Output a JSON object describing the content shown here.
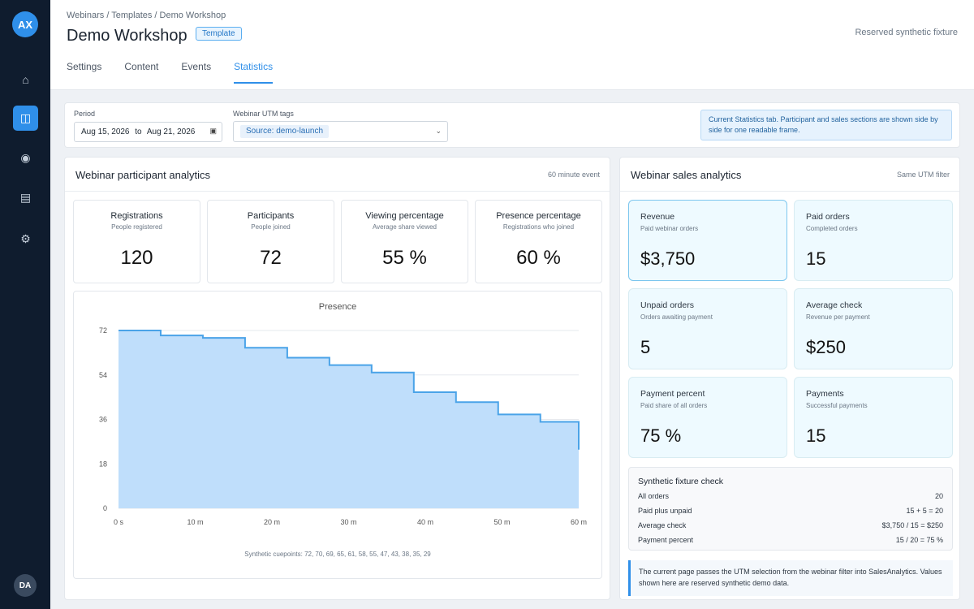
{
  "sidebar": {
    "avatar": "AX",
    "user_initials": "DA",
    "items": [
      {
        "icon": "home-icon",
        "glyph": "⌂"
      },
      {
        "icon": "book-icon",
        "glyph": "◫"
      },
      {
        "icon": "broadcast-icon",
        "glyph": "◉"
      },
      {
        "icon": "list-icon",
        "glyph": "▤"
      },
      {
        "icon": "gear-icon",
        "glyph": "⚙"
      }
    ]
  },
  "header": {
    "breadcrumb": "Webinars / Templates / Demo Workshop",
    "title": "Demo Workshop",
    "badge": "Template",
    "fixture_note": "Reserved synthetic fixture",
    "tabs": [
      "Settings",
      "Content",
      "Events",
      "Statistics"
    ],
    "active_tab": "Statistics"
  },
  "filters": {
    "period_label": "Period",
    "period_from": "Aug 15, 2026",
    "period_to_word": "to",
    "period_to": "Aug 21, 2026",
    "utm_label": "Webinar UTM tags",
    "utm_chip": "Source: demo-launch",
    "info_note": "Current Statistics tab. Participant and sales sections are shown side by side for one readable frame."
  },
  "participants": {
    "title": "Webinar participant analytics",
    "meta": "60 minute event",
    "stats": [
      {
        "title": "Registrations",
        "subtitle": "People registered",
        "value": "120"
      },
      {
        "title": "Participants",
        "subtitle": "People joined",
        "value": "72"
      },
      {
        "title": "Viewing percentage",
        "subtitle": "Average share viewed",
        "value": "55 %"
      },
      {
        "title": "Presence percentage",
        "subtitle": "Registrations who joined",
        "value": "60 %"
      }
    ],
    "cuepoints_note": "Synthetic cuepoints: 72, 70, 69, 65, 61, 58, 55, 47, 43, 38, 35, 29"
  },
  "chart_data": {
    "type": "area",
    "title": "Presence",
    "step": true,
    "x_ticks": [
      "0 s",
      "10 m",
      "20 m",
      "30 m",
      "40 m",
      "50 m",
      "60 m"
    ],
    "x_range": [
      0,
      60
    ],
    "y_ticks": [
      0,
      18,
      36,
      54,
      72
    ],
    "ylim": [
      0,
      72
    ],
    "x": [
      0,
      5.5,
      11,
      16.5,
      22,
      27.5,
      33,
      38.5,
      44,
      49.5,
      55,
      60
    ],
    "values": [
      72,
      70,
      69,
      65,
      61,
      58,
      55,
      47,
      43,
      38,
      35,
      29
    ],
    "fill_color": "#bfdefb",
    "line_color": "#4aa3e8"
  },
  "sales": {
    "title": "Webinar sales analytics",
    "meta": "Same UTM filter",
    "cards": [
      {
        "title": "Revenue",
        "subtitle": "Paid webinar orders",
        "value": "$3,750"
      },
      {
        "title": "Paid orders",
        "subtitle": "Completed orders",
        "value": "15"
      },
      {
        "title": "Unpaid orders",
        "subtitle": "Orders awaiting payment",
        "value": "5"
      },
      {
        "title": "Average check",
        "subtitle": "Revenue per payment",
        "value": "$250"
      },
      {
        "title": "Payment percent",
        "subtitle": "Paid share of all orders",
        "value": "75 %"
      },
      {
        "title": "Payments",
        "subtitle": "Successful payments",
        "value": "15"
      }
    ],
    "check": {
      "title": "Synthetic fixture check",
      "rows": [
        {
          "label": "All orders",
          "value": "20"
        },
        {
          "label": "Paid plus unpaid",
          "value": "15 + 5 = 20"
        },
        {
          "label": "Average check",
          "value": "$3,750 / 15 = $250"
        },
        {
          "label": "Payment percent",
          "value": "15 / 20 = 75 %"
        }
      ]
    },
    "note": "The current page passes the UTM selection from the webinar filter into SalesAnalytics. Values shown here are reserved synthetic demo data."
  }
}
